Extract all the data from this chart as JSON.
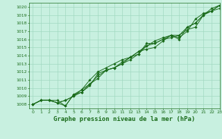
{
  "title": "Graphe pression niveau de la mer (hPa)",
  "bg_color": "#c8f0e0",
  "grid_color": "#a0d8c0",
  "line_color": "#1a6b1a",
  "marker_color": "#1a6b1a",
  "xlim": [
    -0.5,
    23
  ],
  "ylim": [
    1007.5,
    1020.5
  ],
  "yticks": [
    1008,
    1009,
    1010,
    1011,
    1012,
    1013,
    1014,
    1015,
    1016,
    1017,
    1018,
    1019,
    1020
  ],
  "xticks": [
    0,
    1,
    2,
    3,
    4,
    5,
    6,
    7,
    8,
    9,
    10,
    11,
    12,
    13,
    14,
    15,
    16,
    17,
    18,
    19,
    20,
    21,
    22,
    23
  ],
  "series": [
    [
      1008.0,
      1008.5,
      1008.5,
      1008.2,
      1007.8,
      1009.2,
      1009.5,
      1010.3,
      1011.8,
      1012.2,
      1012.5,
      1013.0,
      1013.5,
      1014.2,
      1015.5,
      1015.5,
      1016.0,
      1016.5,
      1016.2,
      1017.0,
      1018.5,
      1019.2,
      1019.5,
      1019.8
    ],
    [
      1008.0,
      1008.5,
      1008.5,
      1008.2,
      1008.5,
      1009.0,
      1009.5,
      1010.5,
      1011.5,
      1012.2,
      1012.5,
      1013.0,
      1013.8,
      1014.5,
      1014.8,
      1015.0,
      1015.8,
      1016.5,
      1016.5,
      1017.2,
      1017.5,
      1019.0,
      1019.5,
      1020.2
    ],
    [
      1008.0,
      1008.5,
      1008.5,
      1008.2,
      1008.5,
      1009.0,
      1009.8,
      1011.0,
      1012.0,
      1012.5,
      1013.0,
      1013.5,
      1013.8,
      1014.2,
      1015.2,
      1015.5,
      1016.0,
      1016.2,
      1016.5,
      1017.5,
      1018.0,
      1019.0,
      1019.5,
      1020.2
    ],
    [
      1008.0,
      1008.5,
      1008.5,
      1008.5,
      1007.8,
      1009.2,
      1009.8,
      1010.5,
      1011.2,
      1012.2,
      1012.5,
      1013.2,
      1013.8,
      1014.5,
      1015.2,
      1015.8,
      1016.2,
      1016.5,
      1016.0,
      1017.5,
      1018.0,
      1019.0,
      1019.8,
      1020.2
    ]
  ],
  "title_fontsize": 6.5,
  "tick_fontsize": 4.5
}
